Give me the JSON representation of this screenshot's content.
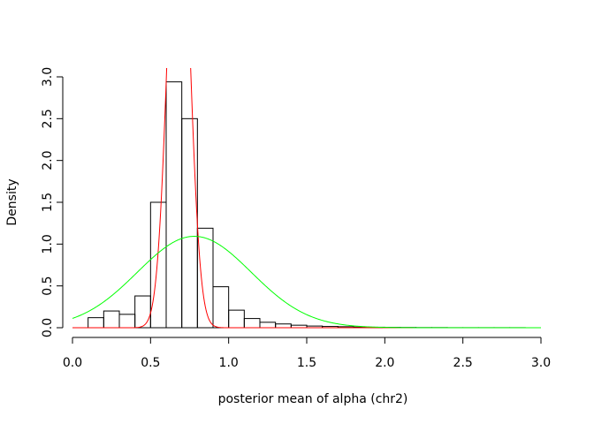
{
  "chart_data": {
    "type": "histogram",
    "title": "",
    "xlabel": "posterior mean of alpha (chr2)",
    "ylabel": "Density",
    "xlim": [
      0.0,
      3.0
    ],
    "ylim": [
      0.0,
      3.0
    ],
    "x_ticks": [
      "0.0",
      "0.5",
      "1.0",
      "1.5",
      "2.0",
      "2.5",
      "3.0"
    ],
    "y_ticks": [
      "0.0",
      "0.5",
      "1.0",
      "1.5",
      "2.0",
      "2.5",
      "3.0"
    ],
    "bin_width": 0.1,
    "bins": [
      {
        "x0": 0.1,
        "x1": 0.2,
        "density": 0.12
      },
      {
        "x0": 0.2,
        "x1": 0.3,
        "density": 0.2
      },
      {
        "x0": 0.3,
        "x1": 0.4,
        "density": 0.16
      },
      {
        "x0": 0.4,
        "x1": 0.5,
        "density": 0.38
      },
      {
        "x0": 0.5,
        "x1": 0.6,
        "density": 1.5
      },
      {
        "x0": 0.6,
        "x1": 0.7,
        "density": 2.94
      },
      {
        "x0": 0.7,
        "x1": 0.8,
        "density": 2.5
      },
      {
        "x0": 0.8,
        "x1": 0.9,
        "density": 1.19
      },
      {
        "x0": 0.9,
        "x1": 1.0,
        "density": 0.49
      },
      {
        "x0": 1.0,
        "x1": 1.1,
        "density": 0.21
      },
      {
        "x0": 1.1,
        "x1": 1.2,
        "density": 0.11
      },
      {
        "x0": 1.2,
        "x1": 1.3,
        "density": 0.065
      },
      {
        "x0": 1.3,
        "x1": 1.4,
        "density": 0.045
      },
      {
        "x0": 1.4,
        "x1": 1.5,
        "density": 0.03
      },
      {
        "x0": 1.5,
        "x1": 1.6,
        "density": 0.02
      },
      {
        "x0": 1.6,
        "x1": 1.7,
        "density": 0.015
      },
      {
        "x0": 1.7,
        "x1": 1.8,
        "density": 0.012
      },
      {
        "x0": 1.8,
        "x1": 1.9,
        "density": 0.008
      },
      {
        "x0": 1.9,
        "x1": 2.0,
        "density": 0.006
      },
      {
        "x0": 2.0,
        "x1": 2.1,
        "density": 0.004
      },
      {
        "x0": 2.1,
        "x1": 2.2,
        "density": 0.003
      },
      {
        "x0": 2.2,
        "x1": 2.3,
        "density": 0.002
      },
      {
        "x0": 2.3,
        "x1": 2.4,
        "density": 0.002
      },
      {
        "x0": 2.4,
        "x1": 2.5,
        "density": 0.001
      },
      {
        "x0": 2.5,
        "x1": 2.6,
        "density": 0.001
      },
      {
        "x0": 2.6,
        "x1": 2.7,
        "density": 0.001
      },
      {
        "x0": 2.7,
        "x1": 2.8,
        "density": 0.001
      },
      {
        "x0": 2.8,
        "x1": 2.9,
        "density": 0.001
      }
    ],
    "curves": [
      {
        "color": "#ff0000",
        "kind": "normal",
        "mean": 0.68,
        "sd": 0.068,
        "x_range": [
          0.0,
          3.0
        ]
      },
      {
        "color": "#00ff00",
        "kind": "normal",
        "mean": 0.78,
        "sd": 0.365,
        "x_range": [
          0.0,
          3.0
        ]
      }
    ],
    "grid": false,
    "legend": "none"
  }
}
